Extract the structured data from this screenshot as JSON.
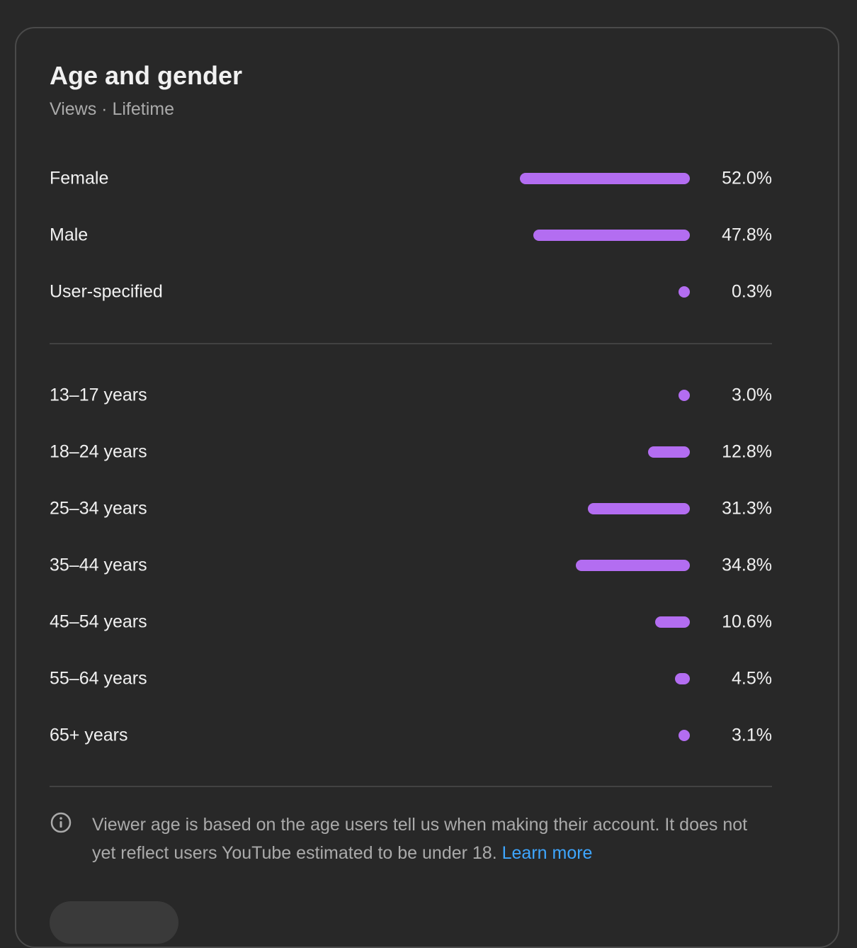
{
  "card": {
    "title": "Age and gender",
    "subtitle": "Views · Lifetime"
  },
  "colors": {
    "background": "#282828",
    "bar": "#b36df1",
    "link": "#3ea6ff",
    "muted_text": "#aaaaaa"
  },
  "gender": [
    {
      "label": "Female",
      "value": "52.0%",
      "fraction": 0.52
    },
    {
      "label": "Male",
      "value": "47.8%",
      "fraction": 0.478
    },
    {
      "label": "User-specified",
      "value": "0.3%",
      "fraction": 0.003
    }
  ],
  "age": [
    {
      "label": "13–17 years",
      "value": "3.0%",
      "fraction": 0.03
    },
    {
      "label": "18–24 years",
      "value": "12.8%",
      "fraction": 0.128
    },
    {
      "label": "25–34 years",
      "value": "31.3%",
      "fraction": 0.313
    },
    {
      "label": "35–44 years",
      "value": "34.8%",
      "fraction": 0.348
    },
    {
      "label": "45–54 years",
      "value": "10.6%",
      "fraction": 0.106
    },
    {
      "label": "55–64 years",
      "value": "4.5%",
      "fraction": 0.045
    },
    {
      "label": "65+ years",
      "value": "3.1%",
      "fraction": 0.031
    }
  ],
  "info": {
    "icon": "info-icon",
    "text": "Viewer age is based on the age users tell us when making their account. It does not yet reflect users YouTube estimated to be under 18.",
    "link_label": "Learn more"
  },
  "footer_button": {
    "label": ""
  }
}
